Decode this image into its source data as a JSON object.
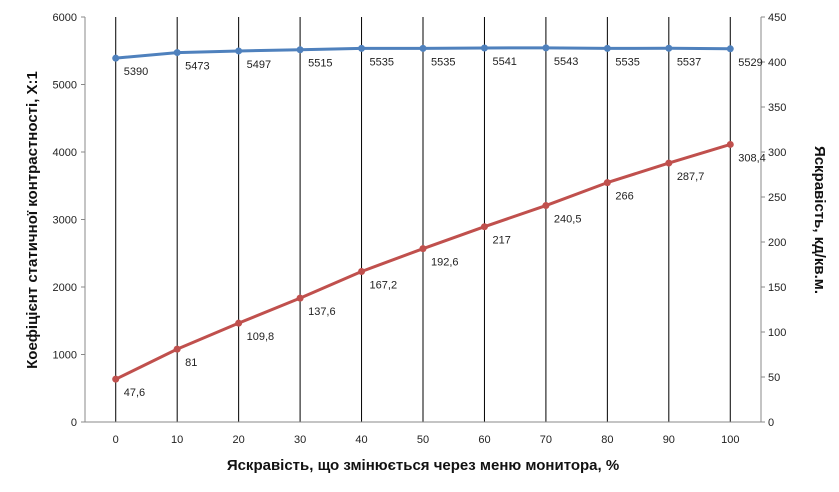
{
  "chart_data": {
    "type": "line",
    "title": "",
    "xlabel": "Яскравість, що змінюється через меню монитора, %",
    "ylabel_left": "Коефіцієнт статичної контрастності, Х:1",
    "ylabel_right": "Яскравість, кд/кв.м.",
    "x": [
      0,
      10,
      20,
      30,
      40,
      50,
      60,
      70,
      80,
      90,
      100
    ],
    "x_ticks": [
      "0",
      "10",
      "20",
      "30",
      "40",
      "50",
      "60",
      "70",
      "80",
      "90",
      "100"
    ],
    "ylim_left": [
      0,
      6000
    ],
    "ylim_right": [
      0,
      450
    ],
    "y_ticks_left": [
      "0",
      "1000",
      "2000",
      "3000",
      "4000",
      "5000",
      "6000"
    ],
    "y_ticks_right": [
      "0",
      "50",
      "100",
      "150",
      "200",
      "250",
      "300",
      "350",
      "400",
      "450"
    ],
    "grid": "vertical",
    "legend": "none",
    "series": [
      {
        "axis": "left",
        "color": "#4f81bd",
        "values": [
          5390,
          5473,
          5497,
          5515,
          5535,
          5535,
          5541,
          5543,
          5535,
          5537,
          5529
        ],
        "labels": [
          "5390",
          "5473",
          "5497",
          "5515",
          "5535",
          "5535",
          "5541",
          "5543",
          "5535",
          "5537",
          "5529"
        ]
      },
      {
        "axis": "right",
        "color": "#c0504d",
        "values": [
          47.6,
          81,
          109.8,
          137.6,
          167.2,
          192.6,
          217,
          240.5,
          266,
          287.7,
          308.4
        ],
        "labels": [
          "47,6",
          "81",
          "109,8",
          "137,6",
          "167,2",
          "192,6",
          "217",
          "240,5",
          "266",
          "287,7",
          "308,4"
        ]
      }
    ]
  }
}
